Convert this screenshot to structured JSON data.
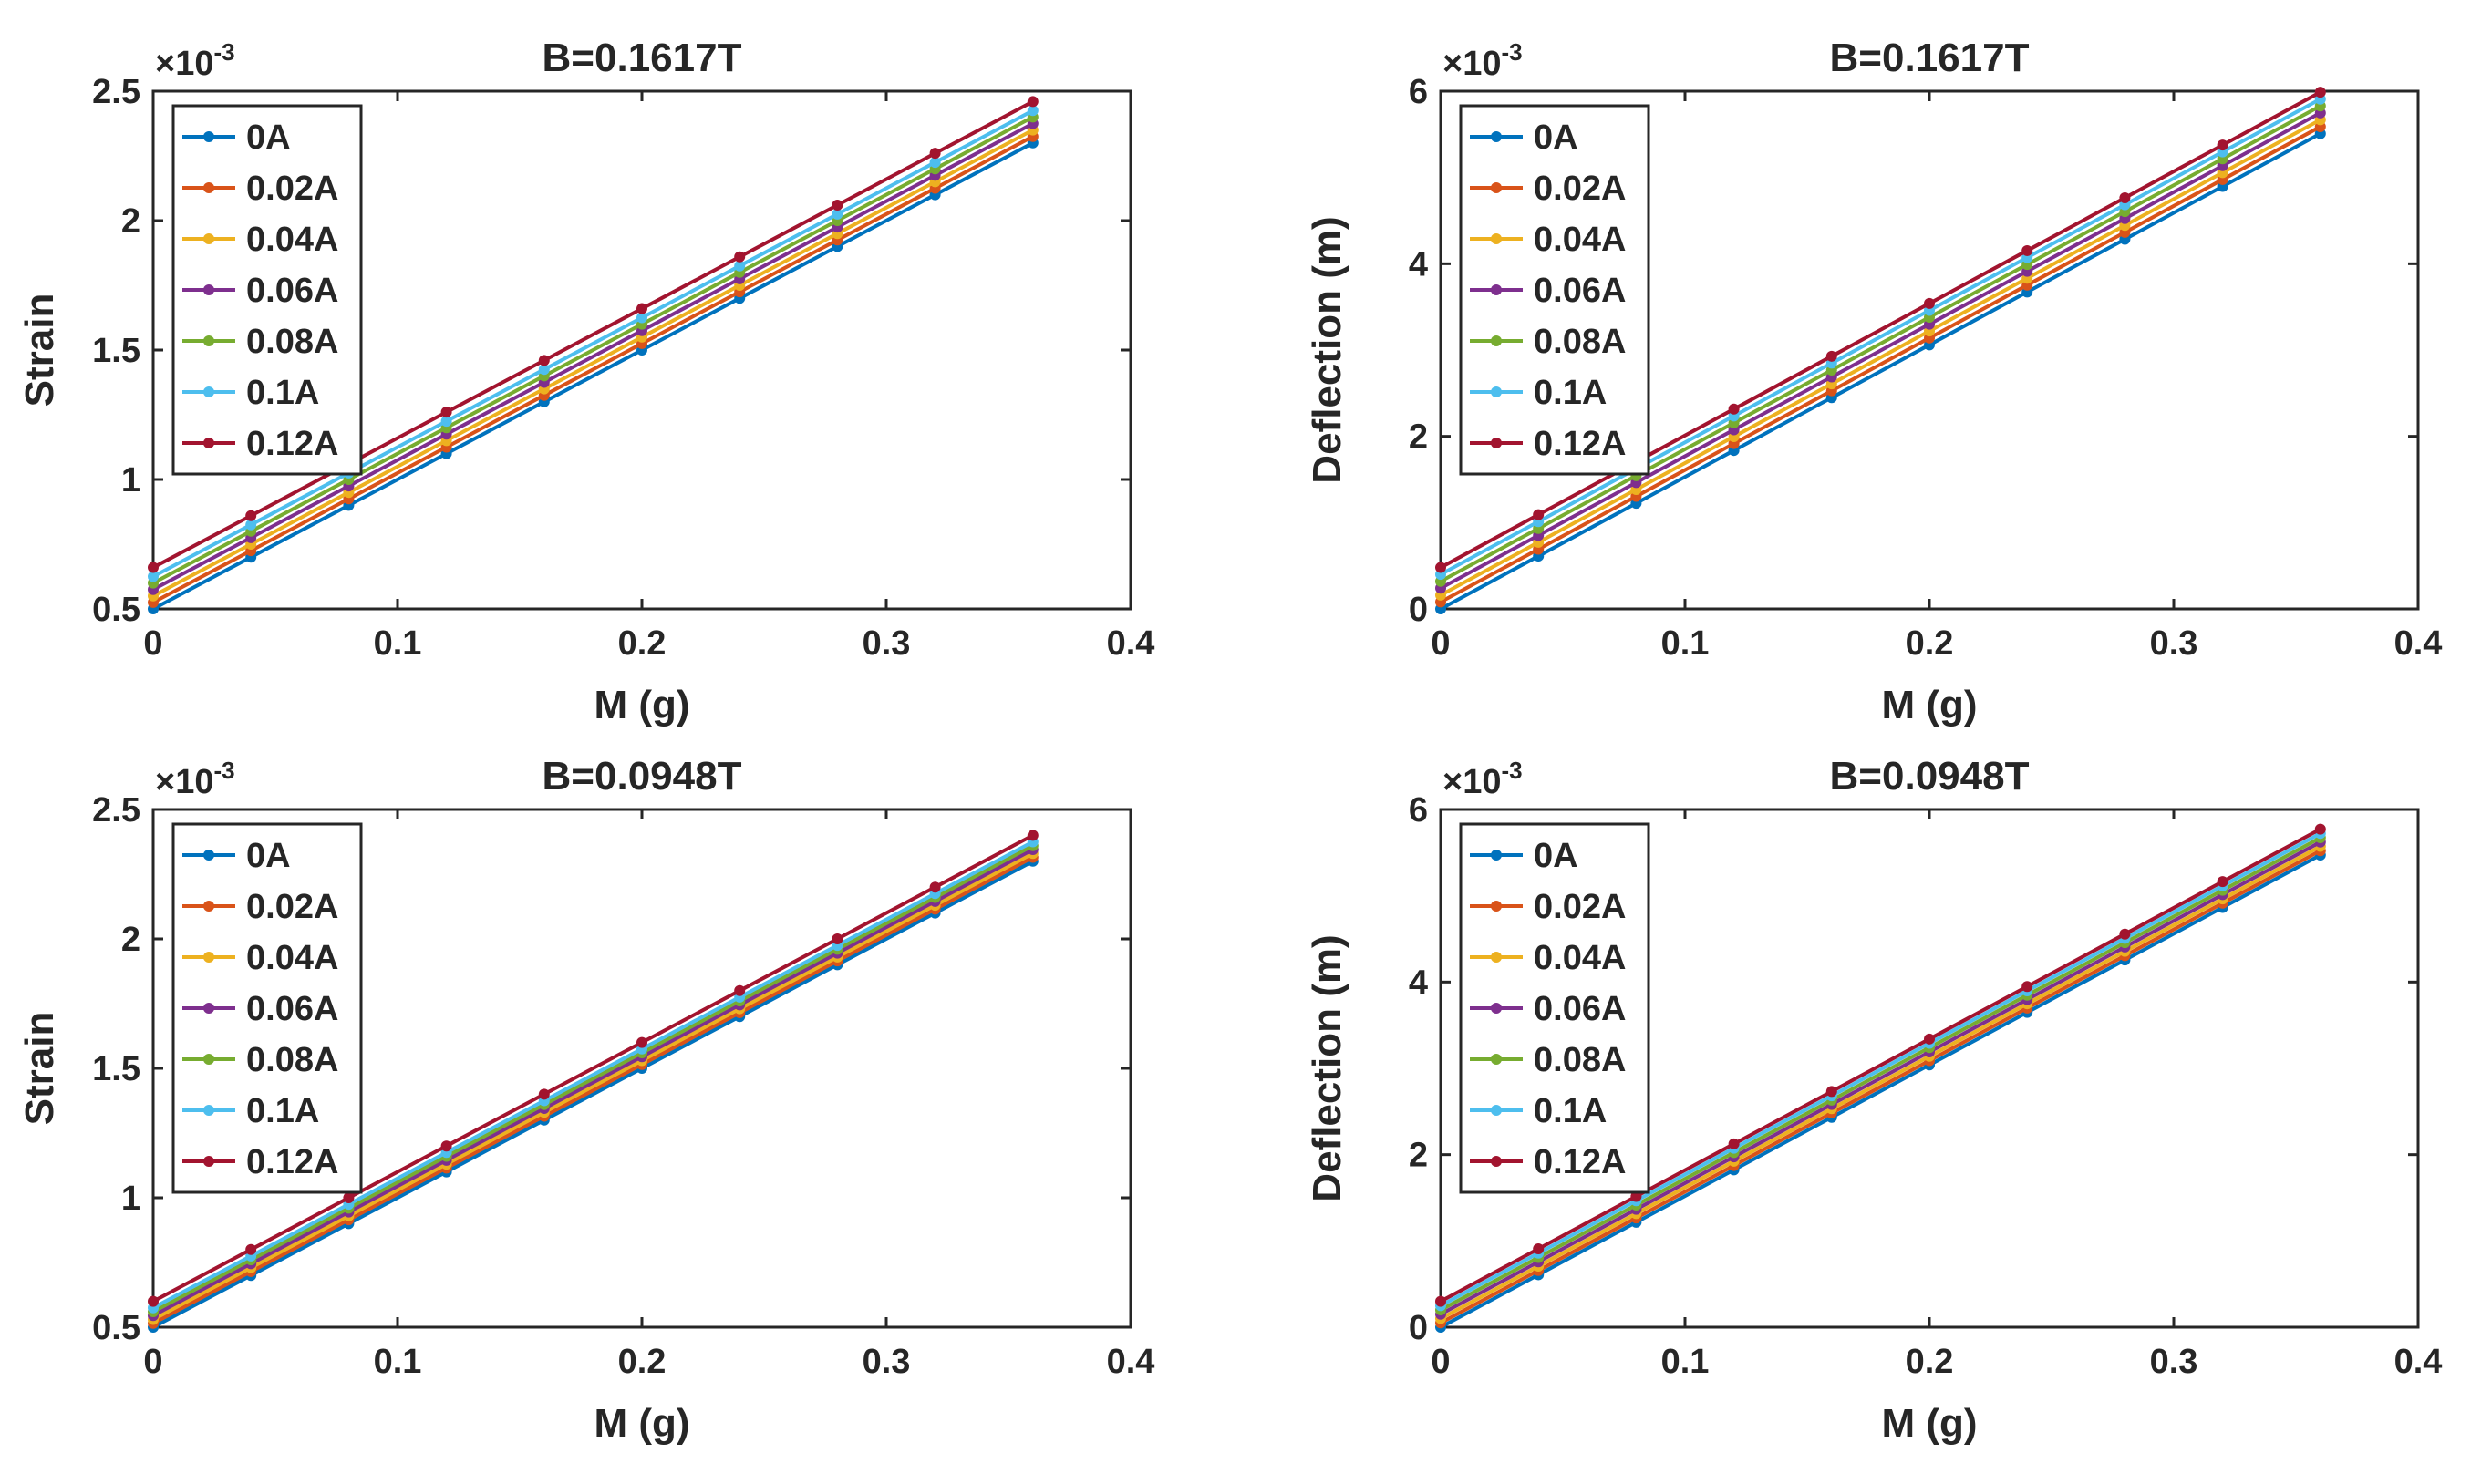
{
  "figure_title": "",
  "chart_data": [
    {
      "type": "line",
      "title": "B=0.1617T",
      "xlabel": "M (g)",
      "ylabel": "Strain",
      "y_exponent_base": "×10",
      "y_exponent_power": "-3",
      "xlim": [
        0,
        0.4
      ],
      "ylim": [
        0.5,
        2.5
      ],
      "xticks": [
        "0",
        "0.1",
        "0.2",
        "0.3",
        "0.4"
      ],
      "yticks": [
        "0.5",
        "1",
        "1.5",
        "2",
        "2.5"
      ],
      "xtick_values": [
        0,
        0.1,
        0.2,
        0.3,
        0.4
      ],
      "ytick_values": [
        0.5,
        1,
        1.5,
        2,
        2.5
      ],
      "x": [
        0,
        0.04,
        0.08,
        0.12,
        0.16,
        0.2,
        0.24,
        0.28,
        0.32,
        0.36
      ],
      "slope": 5.0,
      "legend_position": "top-left",
      "series": [
        {
          "name": "0A",
          "color": "#0072BD",
          "intercept": 0.5
        },
        {
          "name": "0.02A",
          "color": "#D95319",
          "intercept": 0.525
        },
        {
          "name": "0.04A",
          "color": "#EDB120",
          "intercept": 0.55
        },
        {
          "name": "0.06A",
          "color": "#7E2F8E",
          "intercept": 0.575
        },
        {
          "name": "0.08A",
          "color": "#77AC30",
          "intercept": 0.6
        },
        {
          "name": "0.1A",
          "color": "#4DBEEE",
          "intercept": 0.625
        },
        {
          "name": "0.12A",
          "color": "#A2142F",
          "intercept": 0.66
        }
      ]
    },
    {
      "type": "line",
      "title": "B=0.1617T",
      "xlabel": "M (g)",
      "ylabel": "Deflection (m)",
      "y_exponent_base": "×10",
      "y_exponent_power": "-3",
      "xlim": [
        0,
        0.4
      ],
      "ylim": [
        0,
        6
      ],
      "xticks": [
        "0",
        "0.1",
        "0.2",
        "0.3",
        "0.4"
      ],
      "yticks": [
        "0",
        "2",
        "4",
        "6"
      ],
      "xtick_values": [
        0,
        0.1,
        0.2,
        0.3,
        0.4
      ],
      "ytick_values": [
        0,
        2,
        4,
        6
      ],
      "x": [
        0,
        0.04,
        0.08,
        0.12,
        0.16,
        0.2,
        0.24,
        0.28,
        0.32,
        0.36
      ],
      "slope": 15.3,
      "legend_position": "top-left",
      "series": [
        {
          "name": "0A",
          "color": "#0072BD",
          "intercept": 0.0
        },
        {
          "name": "0.02A",
          "color": "#D95319",
          "intercept": 0.08
        },
        {
          "name": "0.04A",
          "color": "#EDB120",
          "intercept": 0.16
        },
        {
          "name": "0.06A",
          "color": "#7E2F8E",
          "intercept": 0.24
        },
        {
          "name": "0.08A",
          "color": "#77AC30",
          "intercept": 0.32
        },
        {
          "name": "0.1A",
          "color": "#4DBEEE",
          "intercept": 0.4
        },
        {
          "name": "0.12A",
          "color": "#A2142F",
          "intercept": 0.48
        }
      ]
    },
    {
      "type": "line",
      "title": "B=0.0948T",
      "xlabel": "M (g)",
      "ylabel": "Strain",
      "y_exponent_base": "×10",
      "y_exponent_power": "-3",
      "xlim": [
        0,
        0.4
      ],
      "ylim": [
        0.5,
        2.5
      ],
      "xticks": [
        "0",
        "0.1",
        "0.2",
        "0.3",
        "0.4"
      ],
      "yticks": [
        "0.5",
        "1",
        "1.5",
        "2",
        "2.5"
      ],
      "xtick_values": [
        0,
        0.1,
        0.2,
        0.3,
        0.4
      ],
      "ytick_values": [
        0.5,
        1,
        1.5,
        2,
        2.5
      ],
      "x": [
        0,
        0.04,
        0.08,
        0.12,
        0.16,
        0.2,
        0.24,
        0.28,
        0.32,
        0.36
      ],
      "slope": 5.0,
      "legend_position": "top-left",
      "series": [
        {
          "name": "0A",
          "color": "#0072BD",
          "intercept": 0.5
        },
        {
          "name": "0.02A",
          "color": "#D95319",
          "intercept": 0.515
        },
        {
          "name": "0.04A",
          "color": "#EDB120",
          "intercept": 0.53
        },
        {
          "name": "0.06A",
          "color": "#7E2F8E",
          "intercept": 0.545
        },
        {
          "name": "0.08A",
          "color": "#77AC30",
          "intercept": 0.56
        },
        {
          "name": "0.1A",
          "color": "#4DBEEE",
          "intercept": 0.575
        },
        {
          "name": "0.12A",
          "color": "#A2142F",
          "intercept": 0.6
        }
      ]
    },
    {
      "type": "line",
      "title": "B=0.0948T",
      "xlabel": "M (g)",
      "ylabel": "Deflection (m)",
      "y_exponent_base": "×10",
      "y_exponent_power": "-3",
      "xlim": [
        0,
        0.4
      ],
      "ylim": [
        0,
        6
      ],
      "xticks": [
        "0",
        "0.1",
        "0.2",
        "0.3",
        "0.4"
      ],
      "yticks": [
        "0",
        "2",
        "4",
        "6"
      ],
      "xtick_values": [
        0,
        0.1,
        0.2,
        0.3,
        0.4
      ],
      "ytick_values": [
        0,
        2,
        4,
        6
      ],
      "x": [
        0,
        0.04,
        0.08,
        0.12,
        0.16,
        0.2,
        0.24,
        0.28,
        0.32,
        0.36
      ],
      "slope": 15.2,
      "legend_position": "top-left",
      "series": [
        {
          "name": "0A",
          "color": "#0072BD",
          "intercept": 0.0
        },
        {
          "name": "0.02A",
          "color": "#D95319",
          "intercept": 0.05
        },
        {
          "name": "0.04A",
          "color": "#EDB120",
          "intercept": 0.1
        },
        {
          "name": "0.06A",
          "color": "#7E2F8E",
          "intercept": 0.15
        },
        {
          "name": "0.08A",
          "color": "#77AC30",
          "intercept": 0.2
        },
        {
          "name": "0.1A",
          "color": "#4DBEEE",
          "intercept": 0.25
        },
        {
          "name": "0.12A",
          "color": "#A2142F",
          "intercept": 0.3
        }
      ]
    }
  ]
}
